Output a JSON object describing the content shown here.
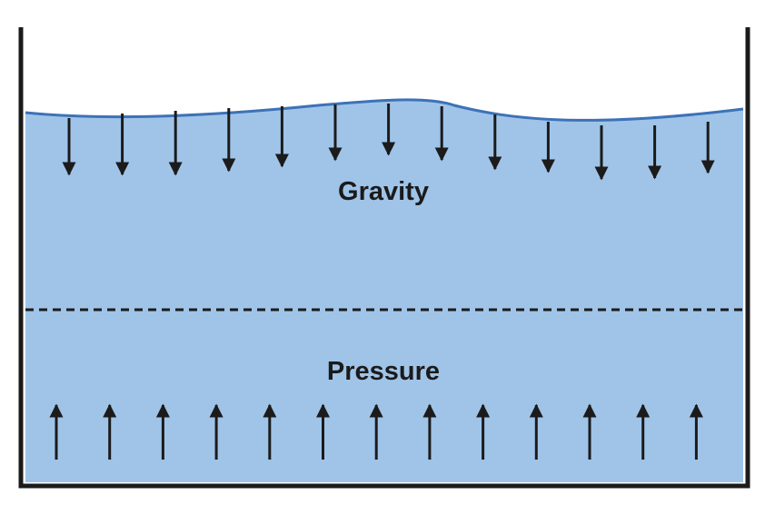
{
  "labels": {
    "gravity": "Gravity",
    "pressure": "Pressure"
  },
  "colors": {
    "water": "#a0c4e8",
    "surface": "#3d72b8",
    "ink": "#1b1b1b",
    "background": "#ffffff"
  },
  "icons": {
    "down_arrow": "down-arrow-icon",
    "up_arrow": "up-arrow-icon"
  },
  "counts": {
    "gravity_arrows": 13,
    "pressure_arrows": 13
  }
}
